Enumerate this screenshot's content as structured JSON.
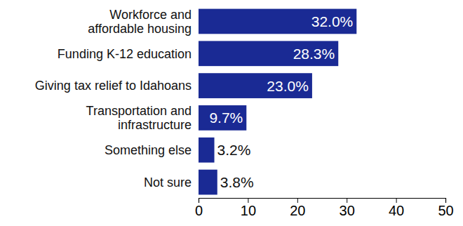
{
  "chart_data": {
    "type": "bar",
    "orientation": "horizontal",
    "categories": [
      "Workforce and\naffordable housing",
      "Funding K-12 education",
      "Giving tax relief to Idahoans",
      "Transportation and\ninfrastructure",
      "Something else",
      "Not sure"
    ],
    "values": [
      32.0,
      28.3,
      23.0,
      9.7,
      3.2,
      3.8
    ],
    "value_labels": [
      "32.0%",
      "28.3%",
      "23.0%",
      "9.7%",
      "3.2%",
      "3.8%"
    ],
    "color": "#1a2a94",
    "xlim": [
      0,
      50
    ],
    "xticks": [
      0,
      10,
      20,
      30,
      40,
      50
    ],
    "grid": false,
    "data_labels": true
  }
}
